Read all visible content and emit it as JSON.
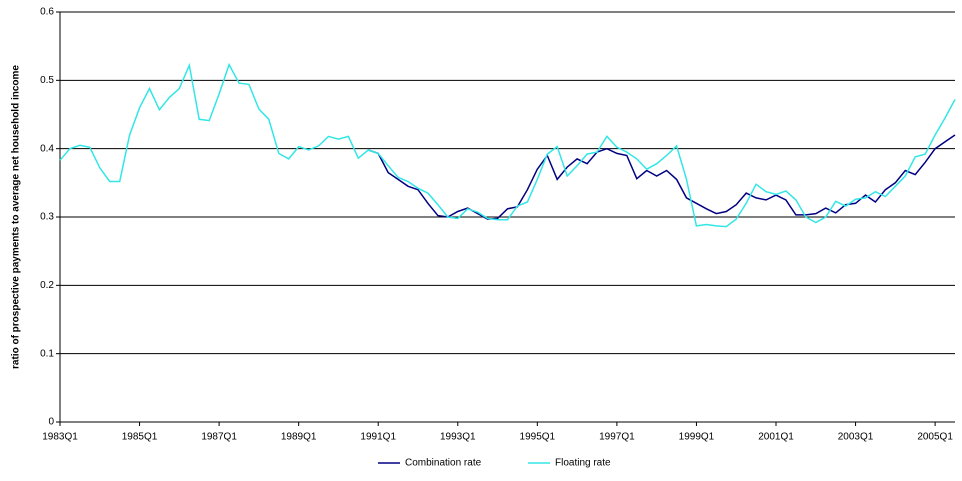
{
  "chart_data": {
    "type": "line",
    "y_label": "ratio of prospective payments to average net household income",
    "categories": [
      "1983Q1",
      null,
      null,
      null,
      null,
      null,
      null,
      null,
      "1985Q1",
      null,
      null,
      null,
      null,
      null,
      null,
      null,
      "1987Q1",
      null,
      null,
      null,
      null,
      null,
      null,
      null,
      "1989Q1",
      null,
      null,
      null,
      null,
      null,
      null,
      null,
      "1991Q1",
      null,
      null,
      null,
      null,
      null,
      null,
      null,
      "1993Q1",
      null,
      null,
      null,
      null,
      null,
      null,
      null,
      "1995Q1",
      null,
      null,
      null,
      null,
      null,
      null,
      null,
      "1997Q1",
      null,
      null,
      null,
      null,
      null,
      null,
      null,
      "1999Q1",
      null,
      null,
      null,
      null,
      null,
      null,
      null,
      "2001Q1",
      null,
      null,
      null,
      null,
      null,
      null,
      null,
      "2003Q1",
      null,
      null,
      null,
      null,
      null,
      null,
      null,
      "2005Q1",
      null,
      null
    ],
    "series": [
      {
        "name": "Combination rate",
        "color": "#000080",
        "values": [
          null,
          null,
          null,
          null,
          null,
          null,
          null,
          null,
          null,
          null,
          null,
          null,
          null,
          null,
          null,
          null,
          null,
          null,
          null,
          null,
          null,
          null,
          null,
          null,
          null,
          null,
          null,
          null,
          null,
          null,
          null,
          0.398,
          0.393,
          0.365,
          0.355,
          0.345,
          0.34,
          0.32,
          0.302,
          0.3,
          0.308,
          0.313,
          0.305,
          0.297,
          0.298,
          0.312,
          0.315,
          0.34,
          0.37,
          0.39,
          0.355,
          0.373,
          0.385,
          0.378,
          0.395,
          0.4,
          0.393,
          0.39,
          0.356,
          0.368,
          0.36,
          0.368,
          0.355,
          0.328,
          0.32,
          0.312,
          0.305,
          0.308,
          0.318,
          0.335,
          0.328,
          0.325,
          0.332,
          0.325,
          0.303,
          0.303,
          0.305,
          0.313,
          0.306,
          0.318,
          0.32,
          0.332,
          0.322,
          0.34,
          0.35,
          0.368,
          0.362,
          0.38,
          0.4,
          0.41,
          0.42
        ]
      },
      {
        "name": "Floating rate",
        "color": "#33e6e6",
        "values": [
          0.383,
          0.4,
          0.405,
          0.402,
          0.372,
          0.352,
          0.352,
          0.42,
          0.46,
          0.488,
          0.457,
          0.475,
          0.488,
          0.522,
          0.443,
          0.441,
          0.48,
          0.523,
          0.496,
          0.494,
          0.458,
          0.443,
          0.393,
          0.385,
          0.403,
          0.398,
          0.404,
          0.418,
          0.414,
          0.418,
          0.386,
          0.398,
          0.393,
          0.375,
          0.358,
          0.352,
          0.342,
          0.335,
          0.318,
          0.3,
          0.298,
          0.312,
          0.307,
          0.298,
          0.296,
          0.296,
          0.316,
          0.322,
          0.355,
          0.392,
          0.403,
          0.36,
          0.375,
          0.392,
          0.395,
          0.418,
          0.402,
          0.395,
          0.385,
          0.37,
          0.378,
          0.39,
          0.404,
          0.355,
          0.287,
          0.289,
          0.287,
          0.286,
          0.297,
          0.32,
          0.348,
          0.337,
          0.333,
          0.338,
          0.325,
          0.3,
          0.292,
          0.3,
          0.323,
          0.316,
          0.326,
          0.328,
          0.337,
          0.33,
          0.345,
          0.36,
          0.388,
          0.392,
          0.42,
          0.445,
          0.472
        ]
      }
    ],
    "ylim": [
      0,
      0.6
    ],
    "yticks": [
      0,
      0.1,
      0.2,
      0.3,
      0.4,
      0.5,
      0.6
    ],
    "grid": true,
    "legend": "bottom"
  }
}
